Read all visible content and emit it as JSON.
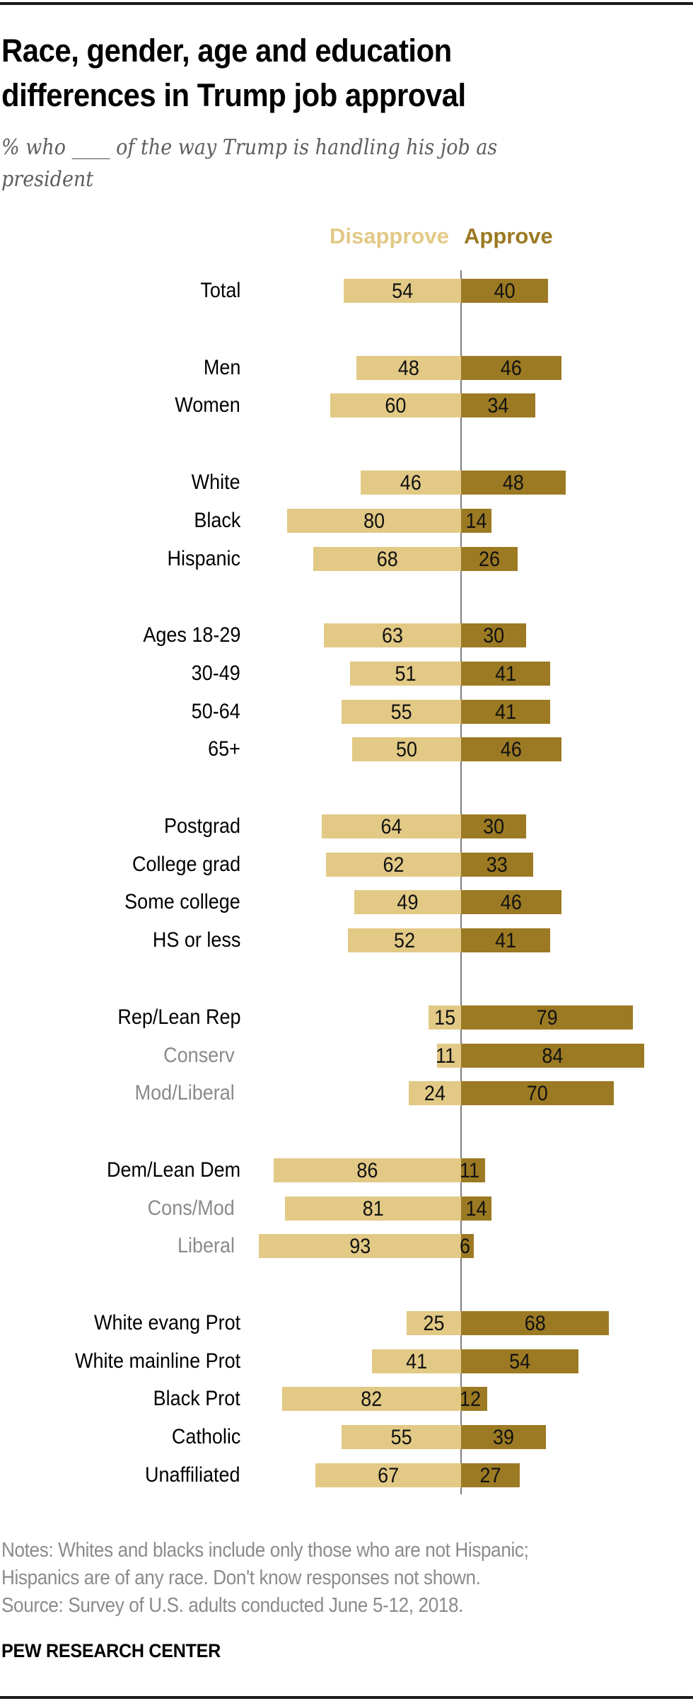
{
  "header": {
    "title_line1": "Race, gender, age and education",
    "title_line2": "differences in Trump job approval",
    "subtitle_line1": "% who ____ of the way Trump is handling his job as",
    "subtitle_line2": "president"
  },
  "colors": {
    "disapprove": "#e2c985",
    "approve": "#9c7a23",
    "sublabel": "#8a8a8a",
    "axis": "#7f7f7f"
  },
  "chart_data": {
    "type": "bar",
    "orientation": "horizontal-diverging",
    "title": "Race, gender, age and education differences in Trump job approval",
    "subtitle": "% who ____ of the way Trump is handling his job as president",
    "legend": [
      "Disapprove",
      "Approve"
    ],
    "legend_position": "top",
    "xlabel": "",
    "ylabel": "",
    "xlim": [
      -100,
      100
    ],
    "grid": false,
    "categories": [
      "Total",
      "Men",
      "Women",
      "White",
      "Black",
      "Hispanic",
      "Ages 18-29",
      "30-49",
      "50-64",
      "65+",
      "Postgrad",
      "College grad",
      "Some college",
      "HS or less",
      "Rep/Lean Rep",
      "Conserv",
      "Mod/Liberal",
      "Dem/Lean Dem",
      "Cons/Mod",
      "Liberal",
      "White evang Prot",
      "White mainline Prot",
      "Black Prot",
      "Catholic",
      "Unaffiliated"
    ],
    "groups": [
      [
        "Total"
      ],
      [
        "Men",
        "Women"
      ],
      [
        "White",
        "Black",
        "Hispanic"
      ],
      [
        "Ages 18-29",
        "30-49",
        "50-64",
        "65+"
      ],
      [
        "Postgrad",
        "College grad",
        "Some college",
        "HS or less"
      ],
      [
        "Rep/Lean Rep",
        "Conserv",
        "Mod/Liberal"
      ],
      [
        "Dem/Lean Dem",
        "Cons/Mod",
        "Liberal"
      ],
      [
        "White evang Prot",
        "White mainline Prot",
        "Black Prot",
        "Catholic",
        "Unaffiliated"
      ]
    ],
    "sublabels": [
      "Conserv",
      "Mod/Liberal",
      "Cons/Mod",
      "Liberal"
    ],
    "series": [
      {
        "name": "Disapprove",
        "values": [
          54,
          48,
          60,
          46,
          80,
          68,
          63,
          51,
          55,
          50,
          64,
          62,
          49,
          52,
          15,
          11,
          24,
          86,
          81,
          93,
          25,
          41,
          82,
          55,
          67
        ]
      },
      {
        "name": "Approve",
        "values": [
          40,
          46,
          34,
          48,
          14,
          26,
          30,
          41,
          41,
          46,
          30,
          33,
          46,
          41,
          79,
          84,
          70,
          11,
          14,
          6,
          68,
          54,
          12,
          39,
          27
        ]
      }
    ]
  },
  "footer": {
    "notes_line1": "Notes: Whites and blacks include only those who are not Hispanic;",
    "notes_line2": "Hispanics are of any race. Don't know responses not shown.",
    "source": "Source: Survey of U.S. adults conducted June 5-12, 2018.",
    "brand": "PEW RESEARCH CENTER"
  }
}
